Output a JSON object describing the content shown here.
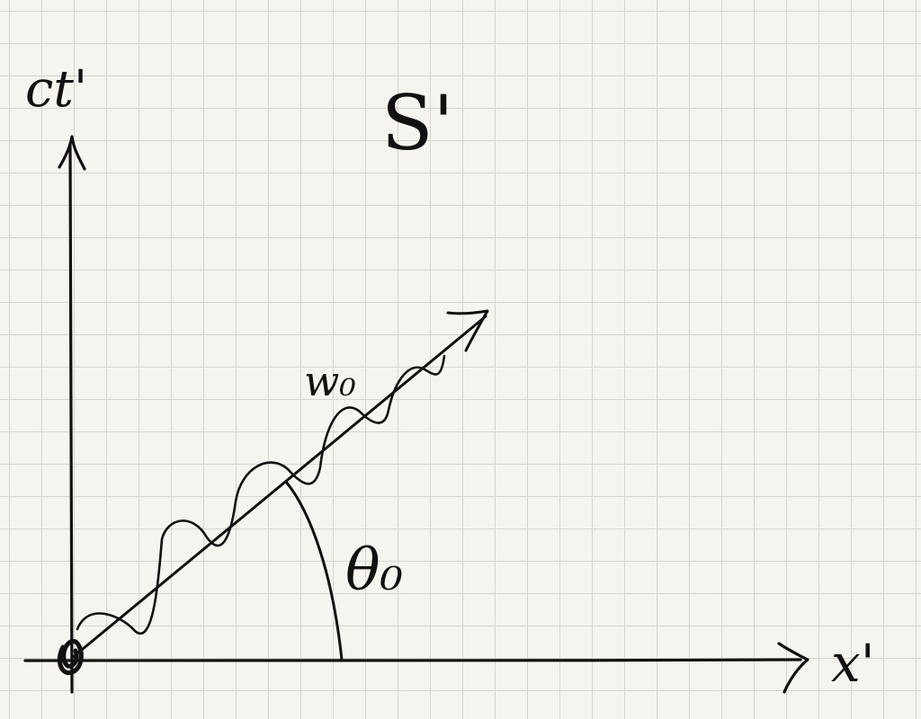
{
  "diagram": {
    "frame_label": "S'",
    "vertical_axis_label": "ct'",
    "horizontal_axis_label": "x'",
    "wave_label": "w₀",
    "angle_label": "θ₀"
  },
  "colors": {
    "ink": "#111111",
    "paper": "#f6f4ee",
    "grid": "#d6d4cf"
  }
}
